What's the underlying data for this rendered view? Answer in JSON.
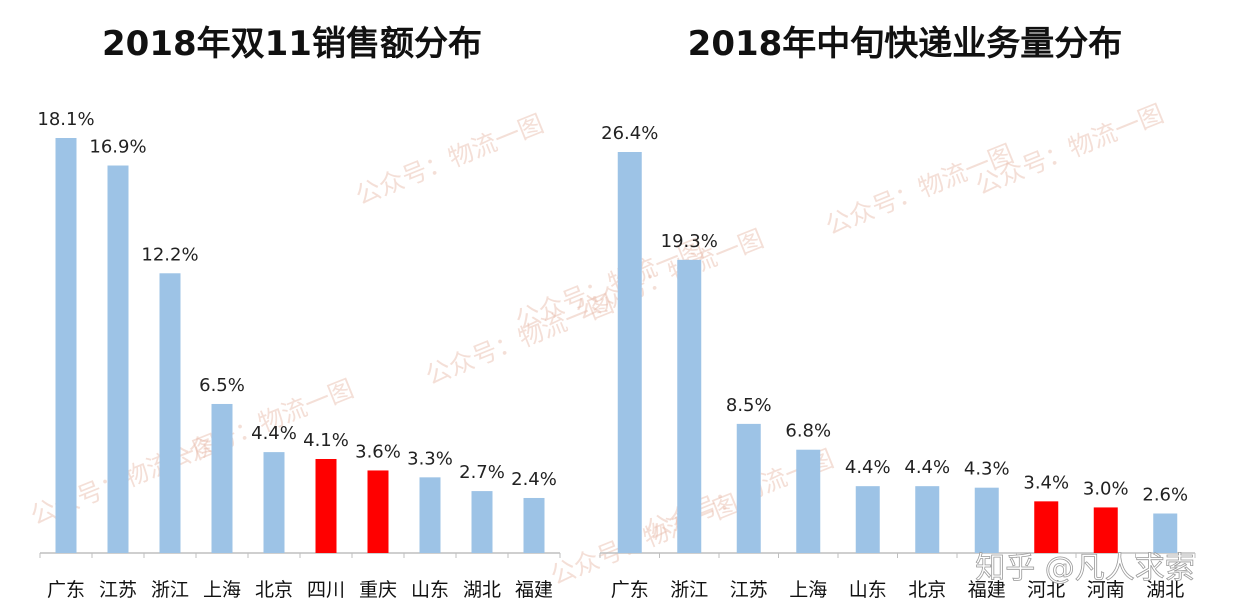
{
  "chart_data": [
    {
      "type": "bar",
      "title": "2018年双11销售额分布",
      "categories": [
        "广东",
        "江苏",
        "浙江",
        "上海",
        "北京",
        "四川",
        "重庆",
        "山东",
        "湖北",
        "福建"
      ],
      "values": [
        18.1,
        16.9,
        12.2,
        6.5,
        4.4,
        4.1,
        3.6,
        3.3,
        2.7,
        2.4
      ],
      "value_labels": [
        "18.1%",
        "16.9%",
        "12.2%",
        "6.5%",
        "4.4%",
        "4.1%",
        "3.6%",
        "3.3%",
        "2.7%",
        "2.4%"
      ],
      "highlight": [
        false,
        false,
        false,
        false,
        false,
        true,
        true,
        false,
        false,
        false
      ],
      "ylim": [
        0,
        18.1
      ],
      "grid": false
    },
    {
      "type": "bar",
      "title": "2018年中旬快递业务量分布",
      "categories": [
        "广东",
        "浙江",
        "江苏",
        "上海",
        "山东",
        "北京",
        "福建",
        "河北",
        "河南",
        "湖北"
      ],
      "values": [
        26.4,
        19.3,
        8.5,
        6.8,
        4.4,
        4.4,
        4.3,
        3.4,
        3.0,
        2.6
      ],
      "value_labels": [
        "26.4%",
        "19.3%",
        "8.5%",
        "6.8%",
        "4.4%",
        "4.4%",
        "4.3%",
        "3.4%",
        "3.0%",
        "2.6%"
      ],
      "highlight": [
        false,
        false,
        false,
        false,
        false,
        false,
        false,
        true,
        true,
        false
      ],
      "ylim": [
        0,
        26.4
      ],
      "grid": false
    }
  ],
  "colors": {
    "bar": "#9dc3e6",
    "highlight": "#ff0000",
    "axis": "#bfbfbf"
  },
  "watermark": "公众号：物流一图",
  "credit": "知乎 @凡人求索"
}
